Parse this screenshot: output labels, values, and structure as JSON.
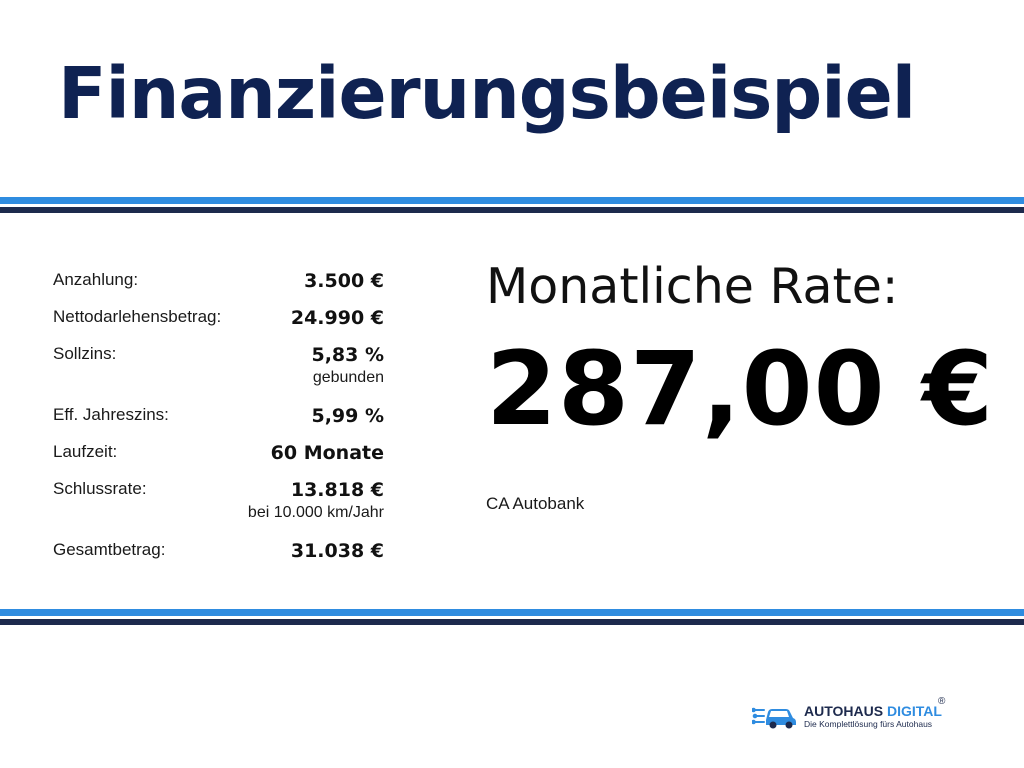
{
  "title": "Finanzierungsbeispiel",
  "details": [
    {
      "label": "Anzahlung:",
      "value": "3.500 €",
      "sub": ""
    },
    {
      "label": "Nettodarlehensbetrag:",
      "value": "24.990 €",
      "sub": ""
    },
    {
      "label": "Sollzins:",
      "value": "5,83 %",
      "sub": "gebunden"
    },
    {
      "label": "Eff. Jahreszins:",
      "value": "5,99 %",
      "sub": ""
    },
    {
      "label": "Laufzeit:",
      "value": "60 Monate",
      "sub": ""
    },
    {
      "label": "Schlussrate:",
      "value": "13.818 €",
      "sub": "bei 10.000 km/Jahr"
    },
    {
      "label": "Gesamtbetrag:",
      "value": "31.038 €",
      "sub": ""
    }
  ],
  "rate": {
    "label": "Monatliche Rate:",
    "value": "287,00 €",
    "bank": "CA Autobank"
  },
  "logo": {
    "name_part1": "AUTOHAUS ",
    "name_part2": "DIGITAL",
    "registered": "®",
    "tagline": "Die Komplettlösung fürs Autohaus",
    "icon": "car-circuit-icon"
  },
  "colors": {
    "title": "#0f2252",
    "stripe_light": "#2f8ce0",
    "stripe_dark": "#1d2a4d"
  }
}
